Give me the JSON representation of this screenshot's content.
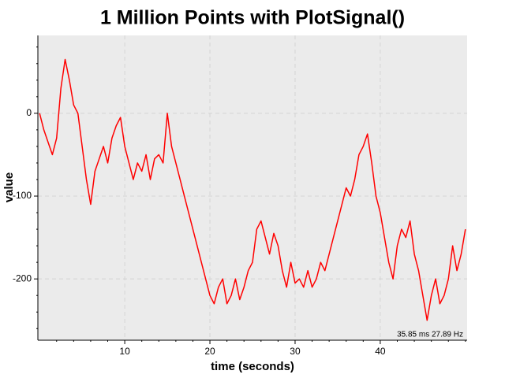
{
  "chart_data": {
    "type": "line",
    "title": "1 Million Points with PlotSignal()",
    "xlabel": "time (seconds)",
    "ylabel": "value",
    "annotation": "35.85 ms 27.89 Hz",
    "color": "#ff0000",
    "grid": true,
    "x": [
      0,
      0.5,
      1,
      1.5,
      2,
      2.5,
      3,
      3.5,
      4,
      4.5,
      5,
      5.5,
      6,
      6.5,
      7,
      7.5,
      8,
      8.5,
      9,
      9.5,
      10,
      10.5,
      11,
      11.5,
      12,
      12.5,
      13,
      13.5,
      14,
      14.5,
      15,
      15.5,
      16,
      16.5,
      17,
      17.5,
      18,
      18.5,
      19,
      19.5,
      20,
      20.5,
      21,
      21.5,
      22,
      22.5,
      23,
      23.5,
      24,
      24.5,
      25,
      25.5,
      26,
      26.5,
      27,
      27.5,
      28,
      28.5,
      29,
      29.5,
      30,
      30.5,
      31,
      31.5,
      32,
      32.5,
      33,
      33.5,
      34,
      34.5,
      35,
      35.5,
      36,
      36.5,
      37,
      37.5,
      38,
      38.5,
      39,
      39.5,
      40,
      40.5,
      41,
      41.5,
      42,
      42.5,
      43,
      43.5,
      44,
      44.5,
      45,
      45.5,
      46,
      46.5,
      47,
      47.5,
      48,
      48.5,
      49,
      49.5,
      50
    ],
    "values": [
      0,
      -20,
      -35,
      -50,
      -30,
      30,
      65,
      40,
      10,
      0,
      -40,
      -80,
      -110,
      -70,
      -55,
      -40,
      -60,
      -30,
      -15,
      -5,
      -40,
      -60,
      -80,
      -60,
      -70,
      -50,
      -80,
      -55,
      -50,
      -60,
      0,
      -40,
      -60,
      -80,
      -100,
      -120,
      -140,
      -160,
      -180,
      -200,
      -220,
      -230,
      -210,
      -200,
      -230,
      -220,
      -200,
      -225,
      -210,
      -190,
      -180,
      -140,
      -130,
      -150,
      -170,
      -145,
      -160,
      -190,
      -210,
      -180,
      -205,
      -200,
      -210,
      -190,
      -210,
      -200,
      -180,
      -190,
      -170,
      -150,
      -130,
      -110,
      -90,
      -100,
      -80,
      -50,
      -40,
      -25,
      -60,
      -100,
      -120,
      -150,
      -180,
      -200,
      -160,
      -140,
      -150,
      -130,
      -170,
      -190,
      -220,
      -250,
      -220,
      -200,
      -230,
      -220,
      -200,
      -160,
      -190,
      -170,
      -140
    ],
    "xlim": [
      -0.2,
      50.2
    ],
    "ylim": [
      -274,
      94
    ],
    "xticks": [
      10,
      20,
      30,
      40
    ],
    "yticks": [
      -200,
      -100,
      0
    ],
    "xminorticks": [
      2,
      4,
      6,
      8,
      12,
      14,
      16,
      18,
      22,
      24,
      26,
      28,
      32,
      34,
      36,
      38,
      42,
      44,
      46,
      48,
      50
    ],
    "yminorticks": [
      -260,
      -240,
      -220,
      -180,
      -160,
      -140,
      -120,
      -80,
      -60,
      -40,
      -20,
      20,
      40,
      60,
      80
    ]
  }
}
